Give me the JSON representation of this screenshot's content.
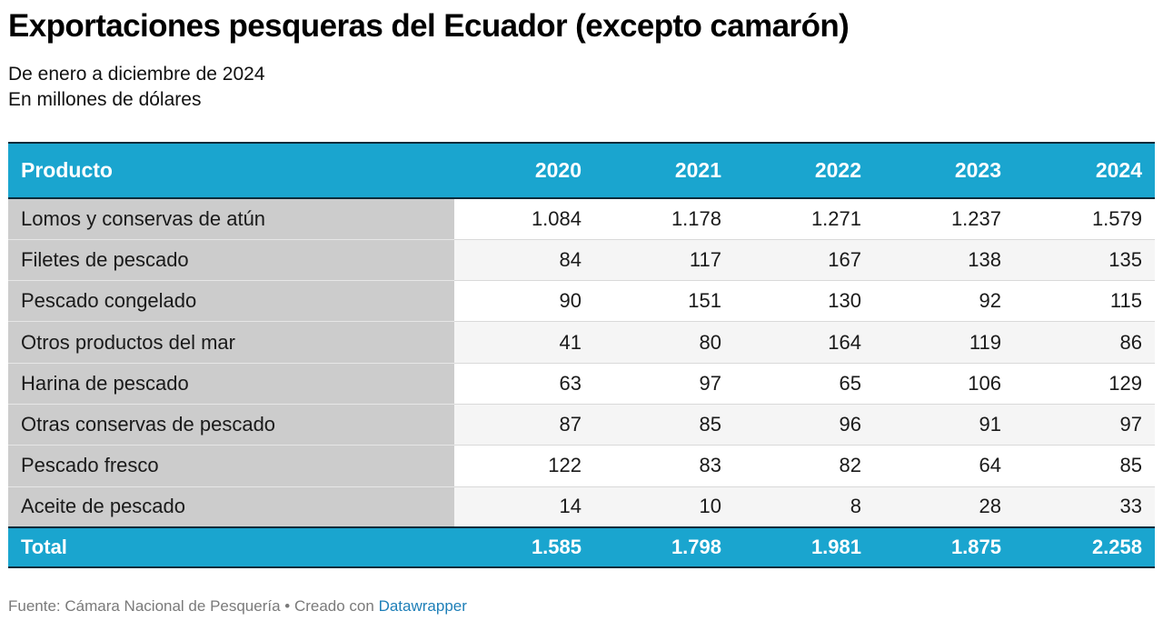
{
  "title": "Exportaciones pesqueras del Ecuador (excepto camarón)",
  "subtitle": {
    "line1": "De enero a diciembre de 2024",
    "line2": "En millones de dólares"
  },
  "colors": {
    "header_bg": "#1aa5cf",
    "header_text": "#ffffff",
    "product_col_bg": "#cccccc",
    "link": "#1e7fb8"
  },
  "footer": {
    "source": "Fuente: Cámara Nacional de Pesquería • Creado con ",
    "link": "Datawrapper"
  },
  "chart_data": {
    "type": "table",
    "columns": [
      "Producto",
      "2020",
      "2021",
      "2022",
      "2023",
      "2024"
    ],
    "rows": [
      [
        "Lomos y conservas de atún",
        "1.084",
        "1.178",
        "1.271",
        "1.237",
        "1.579"
      ],
      [
        "Filetes de pescado",
        "84",
        "117",
        "167",
        "138",
        "135"
      ],
      [
        "Pescado congelado",
        "90",
        "151",
        "130",
        "92",
        "115"
      ],
      [
        "Otros productos del mar",
        "41",
        "80",
        "164",
        "119",
        "86"
      ],
      [
        "Harina de pescado",
        "63",
        "97",
        "65",
        "106",
        "129"
      ],
      [
        "Otras conservas de pescado",
        "87",
        "85",
        "96",
        "91",
        "97"
      ],
      [
        "Pescado fresco",
        "122",
        "83",
        "82",
        "64",
        "85"
      ],
      [
        "Aceite de pescado",
        "14",
        "10",
        "8",
        "28",
        "33"
      ]
    ],
    "total": [
      "Total",
      "1.585",
      "1.798",
      "1.981",
      "1.875",
      "2.258"
    ]
  }
}
